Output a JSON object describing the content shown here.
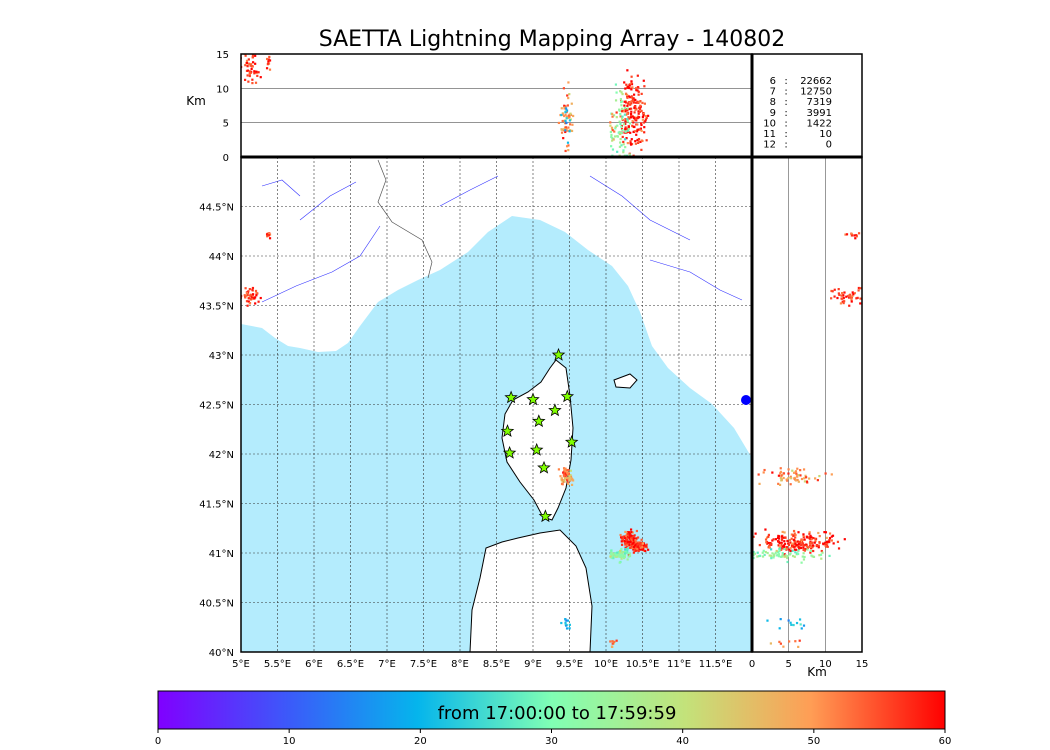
{
  "chart_data": {
    "type": "scatter",
    "title": "SAETTA Lightning Mapping Array - 140802",
    "map": {
      "lon_range": [
        5.0,
        12.0
      ],
      "lat_range": [
        40.0,
        45.0
      ],
      "lon_ticks": [
        "5°E",
        "5.5°E",
        "6°E",
        "6.5°E",
        "7°E",
        "7.5°E",
        "8°E",
        "8.5°E",
        "9°E",
        "9.5°E",
        "10°E",
        "10.5°E",
        "11°E",
        "11.5°E"
      ],
      "lat_ticks": [
        "40°N",
        "40.5°N",
        "41°N",
        "41.5°N",
        "42°N",
        "42.5°N",
        "43°N",
        "43.5°N",
        "44°N",
        "44.5°N"
      ],
      "grid": true
    },
    "altitude_panel": {
      "ylabel": "Km",
      "yticks": [
        "0",
        "5",
        "10",
        "15"
      ],
      "ylim": [
        0,
        15
      ]
    },
    "side_panel": {
      "xlabel": "Km",
      "xticks": [
        "0",
        "5",
        "10",
        "15"
      ],
      "xlim": [
        0,
        15
      ]
    },
    "station_counts": [
      {
        "stations": "6",
        "count": "22662",
        "color": "#000000"
      },
      {
        "stations": "7",
        "count": "12750",
        "color": "#ff0000"
      },
      {
        "stations": "8",
        "count": "7319",
        "color": "#000000"
      },
      {
        "stations": "9",
        "count": "3991",
        "color": "#000000"
      },
      {
        "stations": "10",
        "count": "1422",
        "color": "#000000"
      },
      {
        "stations": "11",
        "count": "10",
        "color": "#000000"
      },
      {
        "stations": "12",
        "count": "0",
        "color": "#000000"
      }
    ],
    "stations": [
      {
        "lon": 9.35,
        "lat": 43.0
      },
      {
        "lon": 8.7,
        "lat": 42.57
      },
      {
        "lon": 9.0,
        "lat": 42.55
      },
      {
        "lon": 9.47,
        "lat": 42.58
      },
      {
        "lon": 9.3,
        "lat": 42.44
      },
      {
        "lon": 9.08,
        "lat": 42.33
      },
      {
        "lon": 8.65,
        "lat": 42.23
      },
      {
        "lon": 9.53,
        "lat": 42.12
      },
      {
        "lon": 8.68,
        "lat": 42.01
      },
      {
        "lon": 9.05,
        "lat": 42.04
      },
      {
        "lon": 9.15,
        "lat": 41.86
      },
      {
        "lon": 9.17,
        "lat": 41.37
      }
    ],
    "clusters": [
      {
        "lon": 9.45,
        "lat": 41.77,
        "lon_sd": 0.05,
        "lat_sd": 0.04,
        "alt": 5.5,
        "alt_sd": 2.0,
        "time_min": 50,
        "n": 60
      },
      {
        "lon": 10.32,
        "lat": 41.13,
        "lon_sd": 0.05,
        "lat_sd": 0.05,
        "alt": 6.5,
        "alt_sd": 2.5,
        "time_min": 58,
        "n": 120
      },
      {
        "lon": 10.45,
        "lat": 41.07,
        "lon_sd": 0.05,
        "lat_sd": 0.03,
        "alt": 6.0,
        "alt_sd": 2.5,
        "time_min": 57,
        "n": 80
      },
      {
        "lon": 10.2,
        "lat": 40.98,
        "lon_sd": 0.07,
        "lat_sd": 0.03,
        "alt": 4.5,
        "alt_sd": 2.5,
        "time_min": 33,
        "n": 70
      },
      {
        "lon": 5.12,
        "lat": 43.6,
        "lon_sd": 0.06,
        "lat_sd": 0.04,
        "alt": 13.0,
        "alt_sd": 1.0,
        "time_min": 58,
        "n": 45
      },
      {
        "lon": 5.37,
        "lat": 44.2,
        "lon_sd": 0.02,
        "lat_sd": 0.02,
        "alt": 14.0,
        "alt_sd": 0.5,
        "time_min": 55,
        "n": 10
      },
      {
        "lon": 9.45,
        "lat": 40.28,
        "lon_sd": 0.03,
        "lat_sd": 0.03,
        "alt": 6.0,
        "alt_sd": 2.0,
        "time_min": 22,
        "n": 12
      },
      {
        "lon": 10.1,
        "lat": 40.1,
        "lon_sd": 0.03,
        "lat_sd": 0.03,
        "alt": 4.0,
        "alt_sd": 1.0,
        "time_min": 52,
        "n": 8
      }
    ],
    "colorbar": {
      "label": "from 17:00:00 to 17:59:59",
      "ticks": [
        "0",
        "10",
        "20",
        "30",
        "40",
        "50",
        "60"
      ],
      "range": [
        0,
        60
      ]
    }
  }
}
